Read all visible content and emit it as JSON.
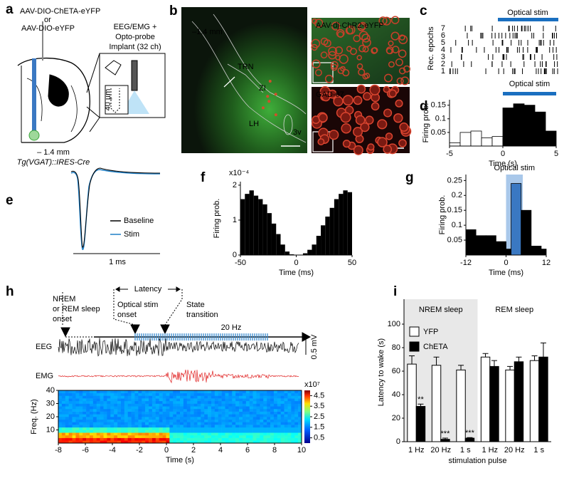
{
  "panel_labels": [
    "a",
    "b",
    "c",
    "d",
    "e",
    "f",
    "g",
    "h",
    "i"
  ],
  "panel_a": {
    "virus_lines": [
      "AAV-DIO-ChETA-eYFP",
      "or",
      "AAV-DIO-eYFP"
    ],
    "implant_lines": [
      "EEG/EMG +",
      "Opto-probe",
      "Implant (32 ch)"
    ],
    "inset_scale": "40 µm",
    "coordinate": "– 1.4 mm",
    "mouse_line": "Tg(VGAT)::IRES-Cre"
  },
  "panel_b": {
    "coordinate": "–1.4 mm",
    "regions": [
      "TRN",
      "ZI",
      "LH",
      "3v"
    ],
    "top_stain": "AAV-dj-ChR2-eYFP",
    "bottom_stain": "GAD-67"
  },
  "panel_c": {
    "stim_label": "Optical stim",
    "ylabel": "Rec. epochs",
    "yticks": [
      1,
      2,
      3,
      4,
      5,
      6,
      7
    ]
  },
  "panel_e": {
    "legend": [
      "Baseline",
      "Stim"
    ],
    "scale_bar": "1 ms"
  },
  "panel_h": {
    "onset_lines": [
      "NREM",
      "or REM sleep",
      "onset"
    ],
    "latency": "Latency",
    "stim_lines": [
      "Optical stim",
      "onset"
    ],
    "transition_lines": [
      "State",
      "transition"
    ],
    "frequency": "20 Hz",
    "traces": [
      "EEG",
      "EMG"
    ],
    "voltage_scale": "0.5 mV",
    "spectrogram": {
      "ylabel": "Freq. (Hz)",
      "xlabel": "Time (s)",
      "xlim": [
        -8,
        10
      ],
      "xticks": [
        -8,
        -6,
        -4,
        -2,
        0,
        2,
        4,
        6,
        8,
        10
      ],
      "ylim": [
        0,
        40
      ],
      "yticks": [
        10,
        20,
        30,
        40
      ],
      "colorbar_scale": "x10⁷",
      "clim": [
        0,
        5
      ],
      "colorbar_ticks": [
        0.5,
        1.5,
        2.5,
        3.5,
        4.5
      ]
    }
  },
  "chart_data": [
    {
      "type": "histogram",
      "ylabel": "Firing prob.",
      "xlabel": "Time (s)",
      "bins": [
        -5,
        -4,
        -3,
        -2,
        -1,
        0,
        1,
        2,
        3,
        4,
        5
      ],
      "values": [
        0.012,
        0.05,
        0.055,
        0.03,
        0.035,
        0.14,
        0.155,
        0.15,
        0.125,
        0.055
      ],
      "colors": [
        "#ffffff",
        "#ffffff",
        "#ffffff",
        "#ffffff",
        "#ffffff",
        "#000000",
        "#000000",
        "#000000",
        "#000000",
        "#000000"
      ],
      "xlim": [
        -5,
        5
      ],
      "ylim": [
        0,
        0.17
      ],
      "xticks": [
        -5,
        0,
        5
      ],
      "yticks": [
        0.05,
        0.1,
        0.15
      ],
      "stim": {
        "label": "Optical stim",
        "span": [
          0,
          5
        ],
        "style": "bar",
        "color": "#1a6fc0",
        "label_color": "#000000"
      }
    },
    {
      "type": "histogram",
      "ylabel": "Firing prob.",
      "xlabel": "Time (ms)",
      "y_scale": "x10⁻⁴",
      "bins": [
        -50,
        -46,
        -42,
        -38,
        -34,
        -30,
        -26,
        -22,
        -18,
        -14,
        -10,
        -6,
        -2,
        2,
        6,
        10,
        14,
        18,
        22,
        26,
        30,
        34,
        38,
        42,
        46,
        50
      ],
      "values": [
        1.6,
        1.75,
        1.85,
        1.7,
        1.6,
        1.45,
        1.2,
        0.9,
        0.6,
        0.3,
        0.1,
        0.02,
        0,
        0,
        0.05,
        0.15,
        0.3,
        0.55,
        0.85,
        1.1,
        1.35,
        1.6,
        1.75,
        1.85,
        1.8
      ],
      "color": "#000000",
      "xlim": [
        -50,
        50
      ],
      "ylim": [
        0,
        2.1
      ],
      "xticks": [
        -50,
        0,
        50
      ],
      "yticks": [
        0,
        1,
        2
      ]
    },
    {
      "type": "histogram",
      "ylabel": "Firing prob.",
      "xlabel": "Time (ms)",
      "bins": [
        -12,
        -9,
        -6,
        -3,
        0,
        1.5,
        4.5,
        7.5,
        10.5,
        12
      ],
      "values": [
        0.085,
        0.065,
        0.065,
        0.045,
        0.02,
        0.24,
        0.15,
        0.03,
        0.02
      ],
      "colors": [
        "#000000",
        "#000000",
        "#000000",
        "#000000",
        "#000000",
        "#3a78c2",
        "#000000",
        "#000000",
        "#000000"
      ],
      "xlim": [
        -12,
        12
      ],
      "ylim": [
        0,
        0.27
      ],
      "xticks": [
        -12,
        0,
        12
      ],
      "yticks": [
        0.05,
        0.1,
        0.15,
        0.2,
        0.25
      ],
      "stim": {
        "label": "Optical stim",
        "span": [
          0,
          5
        ],
        "style": "shade",
        "color": "#a9c8ea",
        "label_color": "#2f6fb6"
      }
    },
    {
      "type": "grouped_bar",
      "ylabel": "Latency to wake (s)",
      "xlabel": "stimulation pulse",
      "groups": [
        "NREM sleep",
        "REM sleep"
      ],
      "categories": [
        "1 Hz",
        "20 Hz",
        "1 s",
        "1 Hz",
        "20 Hz",
        "1 s"
      ],
      "series": [
        {
          "name": "YFP",
          "color": "#ffffff",
          "values": [
            66,
            65,
            61,
            72,
            61,
            69
          ],
          "errors": [
            7,
            7,
            4,
            3,
            3,
            4
          ]
        },
        {
          "name": "ChETA",
          "color": "#000000",
          "values": [
            30,
            2,
            3,
            64,
            68,
            72
          ],
          "errors": [
            2,
            1,
            0.5,
            5,
            4,
            12
          ],
          "annotations": [
            "**",
            "***",
            "***",
            null,
            null,
            null
          ]
        }
      ],
      "ylim": [
        0,
        100
      ],
      "yticks": [
        0,
        20,
        40,
        60,
        80,
        100
      ]
    }
  ]
}
